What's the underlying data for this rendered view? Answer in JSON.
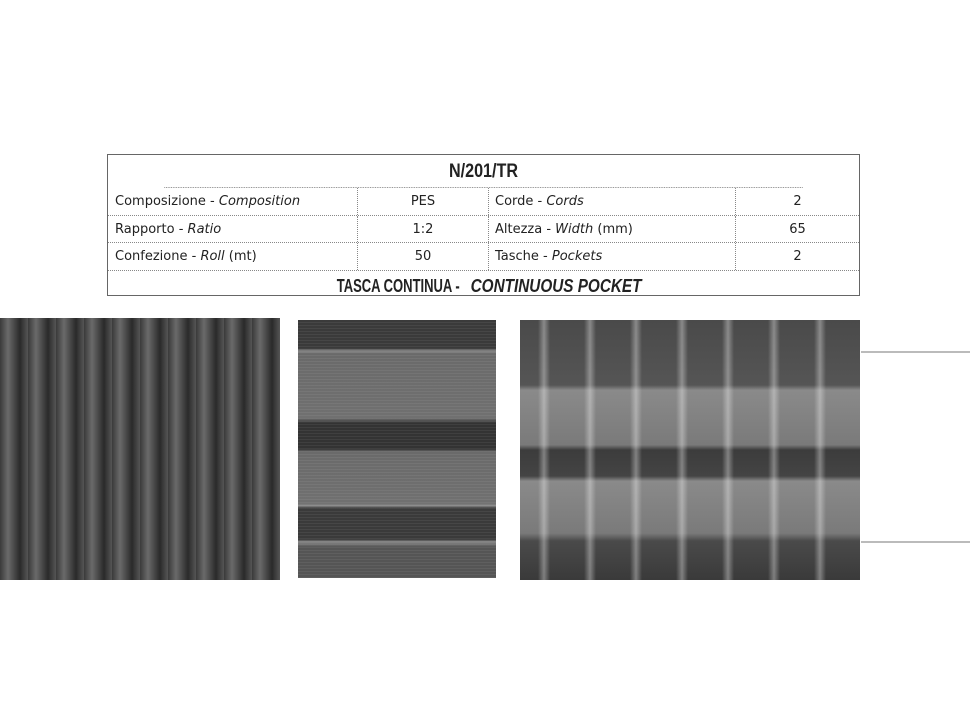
{
  "product": {
    "code": "N/201/TR",
    "rows": [
      {
        "label_it": "Composizione - ",
        "label_en": "Composition",
        "label_suffix": "",
        "value": "PES",
        "label2_it": "Corde - ",
        "label2_en": "Cords",
        "label2_suffix": "",
        "value2": "2"
      },
      {
        "label_it": "Rapporto - ",
        "label_en": "Ratio",
        "label_suffix": "",
        "value": "1:2",
        "label2_it": "Altezza - ",
        "label2_en": "Width",
        "label2_suffix": " (mm)",
        "value2": "65"
      },
      {
        "label_it": "Confezione - ",
        "label_en": "Roll",
        "label_suffix": " (mt)",
        "value": "50",
        "label2_it": "Tasche - ",
        "label2_en": "Pockets",
        "label2_suffix": "",
        "value2": "2"
      }
    ],
    "type_it": "TASCA CONTINUA - ",
    "type_en": "CONTINUOUS POCKET"
  }
}
